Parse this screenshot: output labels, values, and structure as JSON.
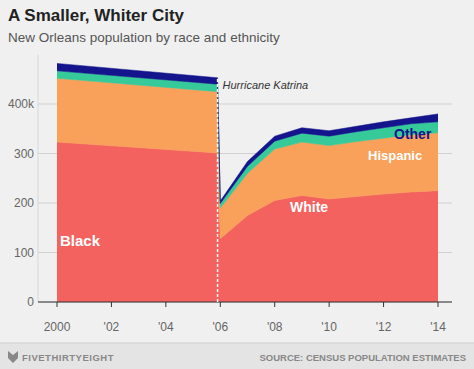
{
  "chart_data": {
    "type": "area",
    "stacked": true,
    "title": "A Smaller, Whiter City",
    "subtitle": "New Orleans population by race and ethnicity",
    "brand": "FIVETHIRTYEIGHT",
    "source": "SOURCE: CENSUS POPULATION ESTIMATES",
    "annotation": {
      "text": "Hurricane Katrina",
      "x": 2005.9
    },
    "x": [
      2000,
      2005.9,
      2006,
      2007,
      2008,
      2009,
      2010,
      2011,
      2012,
      2013,
      2014
    ],
    "xlim": [
      2000,
      2014
    ],
    "xticks": [
      2000,
      {
        "value": 2002,
        "label": "'02"
      },
      {
        "value": 2004,
        "label": "'04"
      },
      {
        "value": 2006,
        "label": "'06"
      },
      {
        "value": 2008,
        "label": "'08"
      },
      {
        "value": 2010,
        "label": "'10"
      },
      {
        "value": 2012,
        "label": "'12"
      },
      {
        "value": 2014,
        "label": "'14"
      }
    ],
    "ylim": [
      0,
      500
    ],
    "yticks": [
      0,
      100,
      200,
      300,
      {
        "value": 400,
        "label": "400k"
      }
    ],
    "grid": true,
    "series": [
      {
        "name": "Black",
        "color": "#f4625f",
        "values": [
          323,
          301,
          128,
          175,
          205,
          215,
          208,
          213,
          218,
          222,
          225
        ]
      },
      {
        "name": "White",
        "color": "#f9a05a",
        "values": [
          129,
          124,
          62,
          85,
          104,
          108,
          108,
          111,
          113,
          116,
          117
        ]
      },
      {
        "name": "Hispanic",
        "color": "#36c99a",
        "values": [
          15,
          15,
          9,
          14,
          16,
          18,
          19,
          20,
          21,
          22,
          22
        ]
      },
      {
        "name": "Other",
        "color": "#14148c",
        "values": [
          15,
          13,
          5,
          10,
          10,
          11,
          11,
          11,
          12,
          12,
          16
        ]
      }
    ]
  }
}
